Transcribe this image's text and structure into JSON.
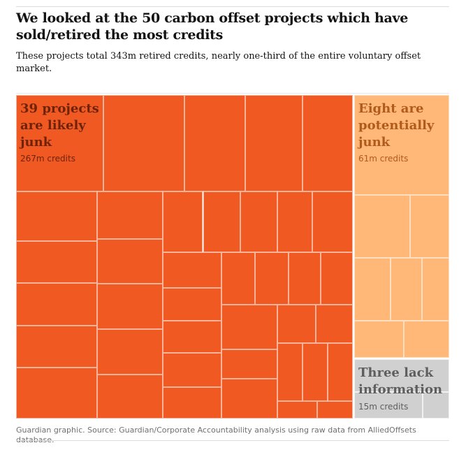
{
  "header": {
    "title": "We looked at the 50 carbon offset projects which have sold/retired the most credits",
    "subtitle": "These projects total 343m retired credits, nearly one-third of the entire voluntary offset market."
  },
  "chart_data": {
    "type": "treemap",
    "title": "We looked at the 50 carbon offset projects which have sold/retired the most credits",
    "total_credits_m": 343,
    "groups": [
      {
        "label": "39 projects are likely junk",
        "credits_label": "267m credits",
        "credits_m": 267,
        "project_count": 39,
        "color": "#f05a22",
        "text_color": "#6e2309"
      },
      {
        "label": "Eight are potentially junk",
        "credits_label": "61m credits",
        "credits_m": 61,
        "project_count": 8,
        "color": "#ffb878",
        "text_color": "#b05a1c"
      },
      {
        "label": "Three lack information",
        "credits_label": "15m credits",
        "credits_m": 15,
        "project_count": 3,
        "color": "#d0d0d0",
        "text_color": "#5e5e5e"
      }
    ]
  },
  "footer": {
    "source": "Guardian graphic. Source: Guardian/Corporate Accountability analysis using raw data from AlliedOffsets database."
  }
}
